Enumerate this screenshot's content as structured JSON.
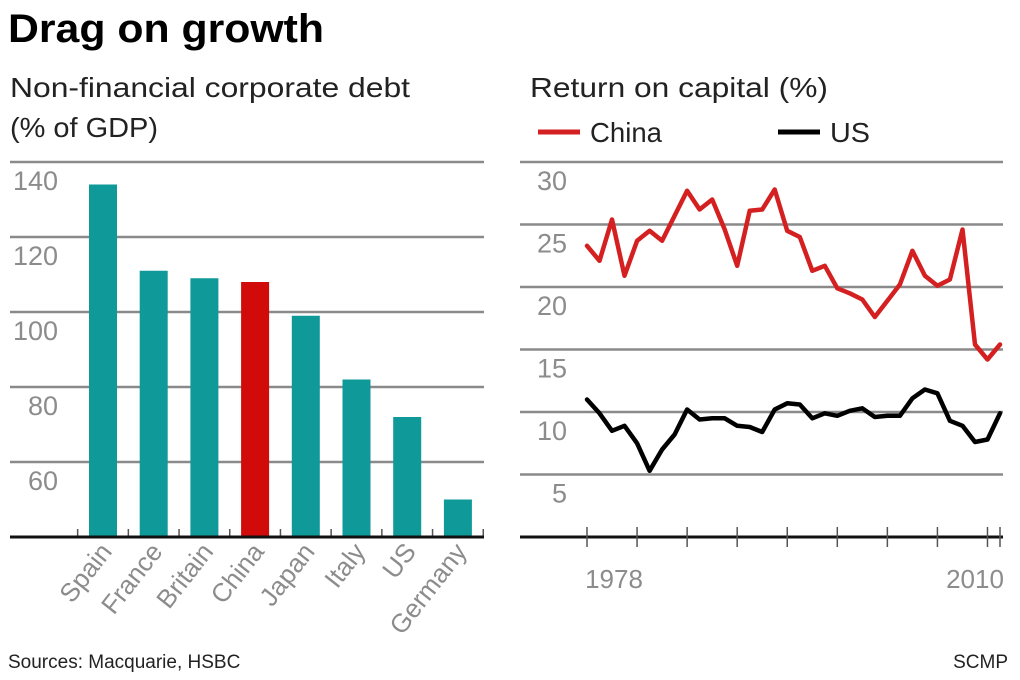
{
  "title": "Drag on growth",
  "footer": {
    "sources": "Sources: Macquarie, HSBC",
    "credit": "SCMP"
  },
  "colors": {
    "bar": "#0f9999",
    "highlight": "#d10a0a",
    "china": "#d42020",
    "us": "#000000",
    "grid": "#8a8a8a"
  },
  "chart_data": [
    {
      "type": "bar",
      "title": "Non-financial corporate debt",
      "title_line2": "(% of GDP)",
      "categories": [
        "Spain",
        "France",
        "Britain",
        "China",
        "Japan",
        "Italy",
        "US",
        "Germany"
      ],
      "values": [
        134,
        111,
        109,
        108,
        99,
        82,
        72,
        50
      ],
      "highlight": "China",
      "ylim": [
        40,
        140
      ],
      "yticks": [
        "60",
        "80",
        "100",
        "120",
        "140"
      ],
      "grid": true
    },
    {
      "type": "line",
      "title": "Return on capital (%)",
      "xlim": [
        1978,
        2011
      ],
      "xtick_labels": [
        "1978",
        "2010"
      ],
      "ylim": [
        0,
        30
      ],
      "yticks": [
        "5",
        "10",
        "15",
        "20",
        "25",
        "30"
      ],
      "grid": true,
      "legend": "top",
      "x": [
        1978,
        1979,
        1980,
        1981,
        1982,
        1983,
        1984,
        1985,
        1986,
        1987,
        1988,
        1989,
        1990,
        1991,
        1992,
        1993,
        1994,
        1995,
        1996,
        1997,
        1998,
        1999,
        2000,
        2001,
        2002,
        2003,
        2004,
        2005,
        2006,
        2007,
        2008,
        2009,
        2010,
        2011
      ],
      "series": [
        {
          "name": "China",
          "values": [
            23.3,
            22.1,
            25.4,
            20.9,
            23.7,
            24.5,
            23.7,
            25.7,
            27.7,
            26.2,
            27.0,
            24.6,
            21.7,
            26.1,
            26.2,
            27.8,
            24.5,
            24.0,
            21.3,
            21.7,
            19.9,
            19.5,
            19.0,
            17.6,
            18.9,
            20.2,
            22.9,
            20.9,
            20.1,
            20.6,
            24.6,
            15.4,
            14.2,
            15.4
          ]
        },
        {
          "name": "US",
          "values": [
            11.0,
            9.9,
            8.5,
            8.9,
            7.5,
            5.3,
            7.0,
            8.2,
            10.2,
            9.4,
            9.5,
            9.5,
            8.9,
            8.8,
            8.4,
            10.2,
            10.7,
            10.6,
            9.5,
            9.9,
            9.7,
            10.1,
            10.3,
            9.6,
            9.7,
            9.7,
            11.1,
            11.8,
            11.5,
            9.3,
            8.9,
            7.6,
            7.8,
            9.9
          ]
        }
      ]
    }
  ]
}
